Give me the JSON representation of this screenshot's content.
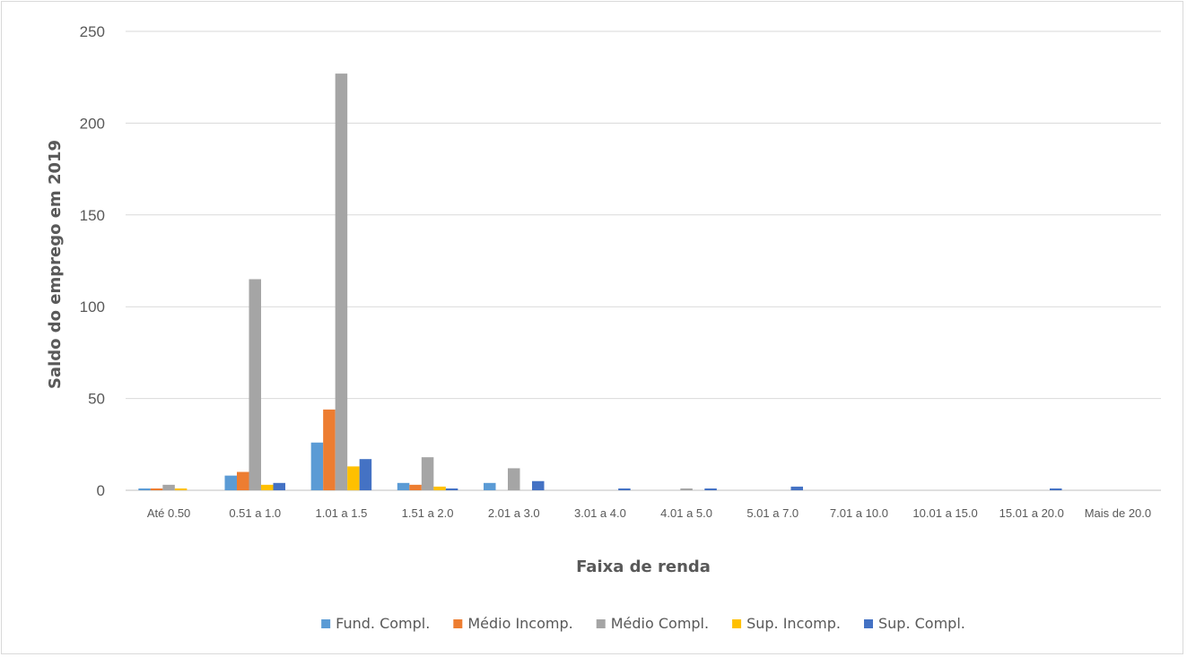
{
  "chart_data": {
    "type": "bar",
    "title": "",
    "xlabel": "Faixa de renda",
    "ylabel": "Saldo do emprego em 2019",
    "ylim": [
      0,
      250
    ],
    "yticks": [
      0,
      50,
      100,
      150,
      200,
      250
    ],
    "grid": true,
    "legend_position": "bottom",
    "categories": [
      "Até 0.50",
      "0.51 a 1.0",
      "1.01 a 1.5",
      "1.51 a 2.0",
      "2.01 a 3.0",
      "3.01 a 4.0",
      "4.01 a 5.0",
      "5.01 a 7.0",
      "7.01 a 10.0",
      "10.01 a 15.0",
      "15.01 a 20.0",
      "Mais de 20.0"
    ],
    "series": [
      {
        "name": "Fund. Compl.",
        "color": "#5b9bd5",
        "values": [
          1,
          8,
          26,
          4,
          4,
          0,
          0,
          0,
          0,
          0,
          0,
          0
        ]
      },
      {
        "name": "Médio Incomp.",
        "color": "#ed7d31",
        "values": [
          1,
          10,
          44,
          3,
          0,
          0,
          0,
          0,
          0,
          0,
          0,
          0
        ]
      },
      {
        "name": "Médio Compl.",
        "color": "#a5a5a5",
        "values": [
          3,
          115,
          227,
          18,
          12,
          0,
          1,
          0,
          0,
          0,
          0,
          0
        ]
      },
      {
        "name": "Sup. Incomp.",
        "color": "#ffc000",
        "values": [
          1,
          3,
          13,
          2,
          0,
          0,
          0,
          0,
          0,
          0,
          0,
          0
        ]
      },
      {
        "name": "Sup. Compl.",
        "color": "#4472c4",
        "values": [
          0,
          4,
          17,
          1,
          5,
          1,
          1,
          2,
          0,
          0,
          1,
          0
        ]
      }
    ]
  }
}
